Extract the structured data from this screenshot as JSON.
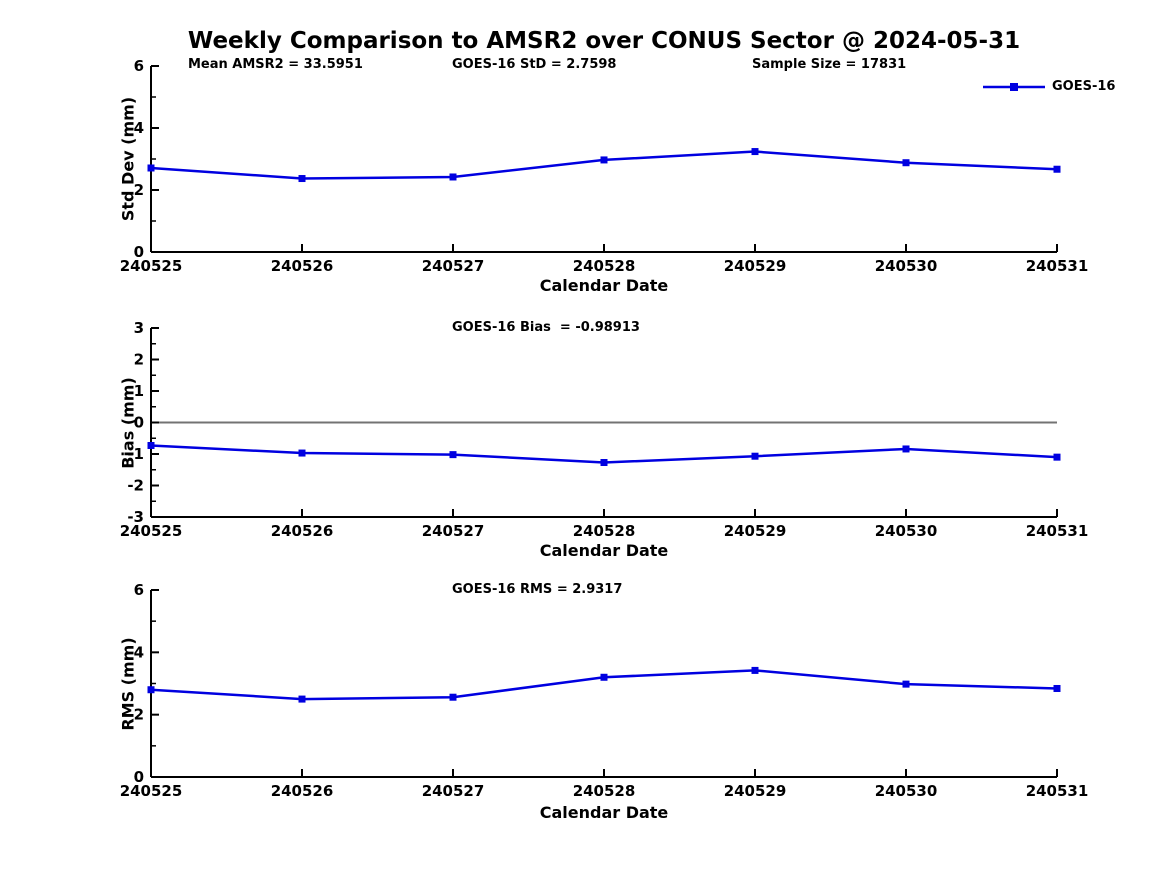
{
  "figure": {
    "title": "Weekly Comparison to AMSR2 over CONUS Sector @ 2024-05-31"
  },
  "legend": {
    "label": "GOES-16",
    "position": "top-right"
  },
  "colors": {
    "series": "#0000e0",
    "zero_line": "#737373",
    "axis": "#000000",
    "text": "#000000",
    "background": "#ffffff"
  },
  "chart_data": [
    {
      "type": "line",
      "categories": [
        "240525",
        "240526",
        "240527",
        "240528",
        "240529",
        "240530",
        "240531"
      ],
      "series": [
        {
          "name": "GOES-16",
          "values": [
            2.71,
            2.37,
            2.42,
            2.97,
            3.24,
            2.88,
            2.67
          ]
        }
      ],
      "ylabel": "Std Dev (mm)",
      "xlabel": "Calendar Date",
      "ylim": [
        0,
        6
      ],
      "yticks": [
        0,
        2,
        4,
        6
      ],
      "yminor": [
        1,
        3,
        5
      ],
      "grid": false,
      "zero_line": false,
      "marker": "square",
      "annotations": [
        "Mean AMSR2 = 33.5951",
        "GOES-16 StD = 2.7598",
        "Sample Size = 17831"
      ]
    },
    {
      "type": "line",
      "categories": [
        "240525",
        "240526",
        "240527",
        "240528",
        "240529",
        "240530",
        "240531"
      ],
      "series": [
        {
          "name": "GOES-16",
          "values": [
            -0.73,
            -0.97,
            -1.02,
            -1.27,
            -1.07,
            -0.84,
            -1.1
          ]
        }
      ],
      "ylabel": "Bias (mm)",
      "xlabel": "Calendar Date",
      "ylim": [
        -3,
        3
      ],
      "yticks": [
        -3,
        -2,
        -1,
        0,
        1,
        2,
        3
      ],
      "yminor": [
        -2.5,
        -1.5,
        -0.5,
        0.5,
        1.5,
        2.5
      ],
      "grid": false,
      "zero_line": true,
      "marker": "square",
      "annotations": [
        "GOES-16 Bias  = -0.98913"
      ]
    },
    {
      "type": "line",
      "categories": [
        "240525",
        "240526",
        "240527",
        "240528",
        "240529",
        "240530",
        "240531"
      ],
      "series": [
        {
          "name": "GOES-16",
          "values": [
            2.8,
            2.5,
            2.56,
            3.2,
            3.42,
            2.98,
            2.84
          ]
        }
      ],
      "ylabel": "RMS (mm)",
      "xlabel": "Calendar Date",
      "ylim": [
        0,
        6
      ],
      "yticks": [
        0,
        2,
        4,
        6
      ],
      "yminor": [
        1,
        3,
        5
      ],
      "grid": false,
      "zero_line": false,
      "marker": "square",
      "annotations": [
        "GOES-16 RMS = 2.9317"
      ]
    }
  ]
}
